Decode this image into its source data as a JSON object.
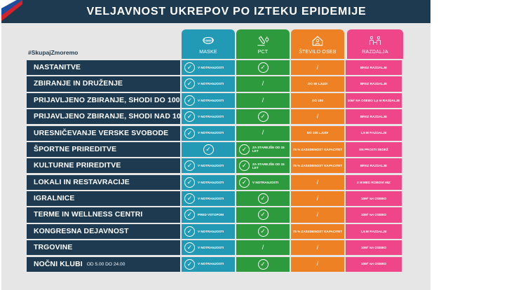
{
  "title": "VELJAVNOST UKREPOV PO IZTEKU EPIDEMIJE",
  "hashtag": "#SkupajZmoremo",
  "colors": {
    "navy": "#1d3a50",
    "maske": "#229ab6",
    "pct": "#2d9b3d",
    "stevilo": "#ee8123",
    "razdalja": "#ee4688",
    "background": "#e6e6e6"
  },
  "columns": [
    {
      "label": "MASKE",
      "icon": "face-mask-icon"
    },
    {
      "label": "PCT",
      "icon": "test-tube-icon"
    },
    {
      "label": "ŠTEVILO OSEB",
      "icon": "house-person-icon"
    },
    {
      "label": "RAZDALJA",
      "icon": "people-distance-icon"
    }
  ],
  "rows": [
    {
      "label": "NASTANITVE",
      "sub": "",
      "cells": [
        {
          "check": true,
          "text": "V NOTRANJOSTI"
        },
        {
          "check": true,
          "text": ""
        },
        {
          "check": false,
          "text": "/"
        },
        {
          "check": false,
          "text": "BREZ RAZDALJE"
        }
      ]
    },
    {
      "label": "ZBIRANJE IN DRUŽENJE",
      "sub": "",
      "cells": [
        {
          "check": true,
          "text": "V NOTRANJOSTI"
        },
        {
          "check": false,
          "text": "/"
        },
        {
          "check": false,
          "text": "DO 50 LJUDI"
        },
        {
          "check": false,
          "text": "BREZ RAZDALJE"
        }
      ]
    },
    {
      "label": "PRIJAVLJENO ZBIRANJE, SHODI DO 100",
      "sub": "",
      "cells": [
        {
          "check": true,
          "text": "V NOTRANJOSTI"
        },
        {
          "check": false,
          "text": "/"
        },
        {
          "check": false,
          "text": "DO 100"
        },
        {
          "check": false,
          "text": "10M² NA OSEBO 1,5 M RAZDALJE"
        }
      ]
    },
    {
      "label": "PRIJAVLJENO ZBIRANJE, SHODI NAD 100",
      "sub": "",
      "cells": [
        {
          "check": true,
          "text": "V NOTRANJOSTI"
        },
        {
          "check": true,
          "text": ""
        },
        {
          "check": false,
          "text": "/"
        },
        {
          "check": false,
          "text": "BREZ RAZDALJE"
        }
      ]
    },
    {
      "label": "URESNIČEVANJE VERSKE SVOBODE",
      "sub": "",
      "cells": [
        {
          "check": true,
          "text": "V NOTRANJOSTI"
        },
        {
          "check": false,
          "text": "/"
        },
        {
          "check": false,
          "text": "DO 100 LJUDI"
        },
        {
          "check": false,
          "text": "1,5 M RAZDALJE"
        }
      ]
    },
    {
      "label": "ŠPORTNE PRIREDITVE",
      "sub": "",
      "cells": [
        {
          "check": true,
          "text": ""
        },
        {
          "check": true,
          "text": "ZA STAREJŠE OD 15 LET"
        },
        {
          "check": false,
          "text": "75 % ZASEDENOST KAPACITET"
        },
        {
          "check": false,
          "text": "EN PROSTI SEDEŽ"
        }
      ]
    },
    {
      "label": "KULTURNE PRIREDITVE",
      "sub": "",
      "cells": [
        {
          "check": true,
          "text": "V NOTRANJOSTI"
        },
        {
          "check": true,
          "text": "ZA STAREJŠE OD 15 LET"
        },
        {
          "check": false,
          "text": "75 % ZASEDENOST KAPACITET"
        },
        {
          "check": false,
          "text": "BREZ RAZDALJE"
        }
      ]
    },
    {
      "label": "LOKALI IN RESTAVRACIJE",
      "sub": "",
      "cells": [
        {
          "check": true,
          "text": "V NOTRANJOSTI"
        },
        {
          "check": true,
          "text": "V NOTRANJOSTI"
        },
        {
          "check": false,
          "text": "/"
        },
        {
          "check": false,
          "text": "2 M MED ROBOVI MIZ"
        }
      ]
    },
    {
      "label": "IGRALNICE",
      "sub": "",
      "cells": [
        {
          "check": true,
          "text": "V NOTRANJOSTI"
        },
        {
          "check": true,
          "text": ""
        },
        {
          "check": false,
          "text": "/"
        },
        {
          "check": false,
          "text": "10M² NA OSEBO"
        }
      ]
    },
    {
      "label": "TERME IN WELLNESS CENTRI",
      "sub": "",
      "cells": [
        {
          "check": true,
          "text": "PRED VSTOPOM"
        },
        {
          "check": true,
          "text": ""
        },
        {
          "check": false,
          "text": "/"
        },
        {
          "check": false,
          "text": "10M² NA OSEBO"
        }
      ]
    },
    {
      "label": "KONGRESNA DEJAVNOST",
      "sub": "",
      "cells": [
        {
          "check": true,
          "text": "V NOTRANJOSTI"
        },
        {
          "check": true,
          "text": ""
        },
        {
          "check": false,
          "text": "75 % ZASEDENOST KAPACITET"
        },
        {
          "check": false,
          "text": "1,5 M RAZDALJE"
        }
      ]
    },
    {
      "label": "TRGOVINE",
      "sub": "",
      "cells": [
        {
          "check": true,
          "text": "V NOTRANJOSTI"
        },
        {
          "check": false,
          "text": "/"
        },
        {
          "check": false,
          "text": "/"
        },
        {
          "check": false,
          "text": "10M² NA OSEBO"
        }
      ]
    },
    {
      "label": "NOČNI KLUBI",
      "sub": "OD 5.00 DO 24.00",
      "cells": [
        {
          "check": true,
          "text": "V NOTRANJOSTI"
        },
        {
          "check": true,
          "text": ""
        },
        {
          "check": false,
          "text": "/"
        },
        {
          "check": false,
          "text": "10M² NA OSEBO"
        }
      ]
    }
  ]
}
